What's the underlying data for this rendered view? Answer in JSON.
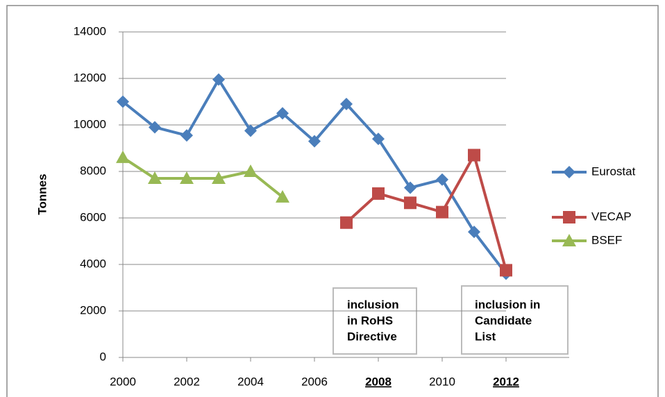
{
  "chart_data": {
    "type": "line",
    "y_label": "Tonnes",
    "x": [
      2000,
      2001,
      2002,
      2003,
      2004,
      2005,
      2006,
      2007,
      2008,
      2009,
      2010,
      2011,
      2012
    ],
    "series": [
      {
        "name": "Eurostat",
        "color": "#4a7ebb",
        "marker": "diamond",
        "values": [
          11000,
          9900,
          9550,
          11950,
          9750,
          10500,
          9300,
          10900,
          9400,
          7300,
          7650,
          5400,
          3600
        ]
      },
      {
        "name": "VECAP",
        "color": "#be4b48",
        "marker": "square",
        "values": [
          null,
          null,
          null,
          null,
          null,
          null,
          null,
          5800,
          7050,
          6650,
          6250,
          8700,
          3750
        ]
      },
      {
        "name": "BSEF",
        "color": "#98b954",
        "marker": "triangle",
        "values": [
          8600,
          7700,
          7700,
          7700,
          8000,
          6900,
          null,
          null,
          null,
          null,
          null,
          null,
          null
        ]
      }
    ],
    "xlim": [
      2000,
      2012
    ],
    "xticks": [
      2000,
      2002,
      2004,
      2006,
      2008,
      2010,
      2012
    ],
    "xtick_colors": [
      null,
      null,
      null,
      null,
      "#ff0000",
      null,
      "#1f6fc0"
    ],
    "ylim": [
      0,
      14000
    ],
    "yticks": [
      0,
      2000,
      4000,
      6000,
      8000,
      10000,
      12000,
      14000
    ],
    "grid": true,
    "annotations": [
      {
        "lines": [
          "inclusion",
          "in RoHS",
          "Directive"
        ],
        "color": "#ff0000"
      },
      {
        "lines": [
          "inclusion  in",
          "Candidate",
          "List"
        ],
        "color": "#1f6fc0"
      }
    ]
  }
}
